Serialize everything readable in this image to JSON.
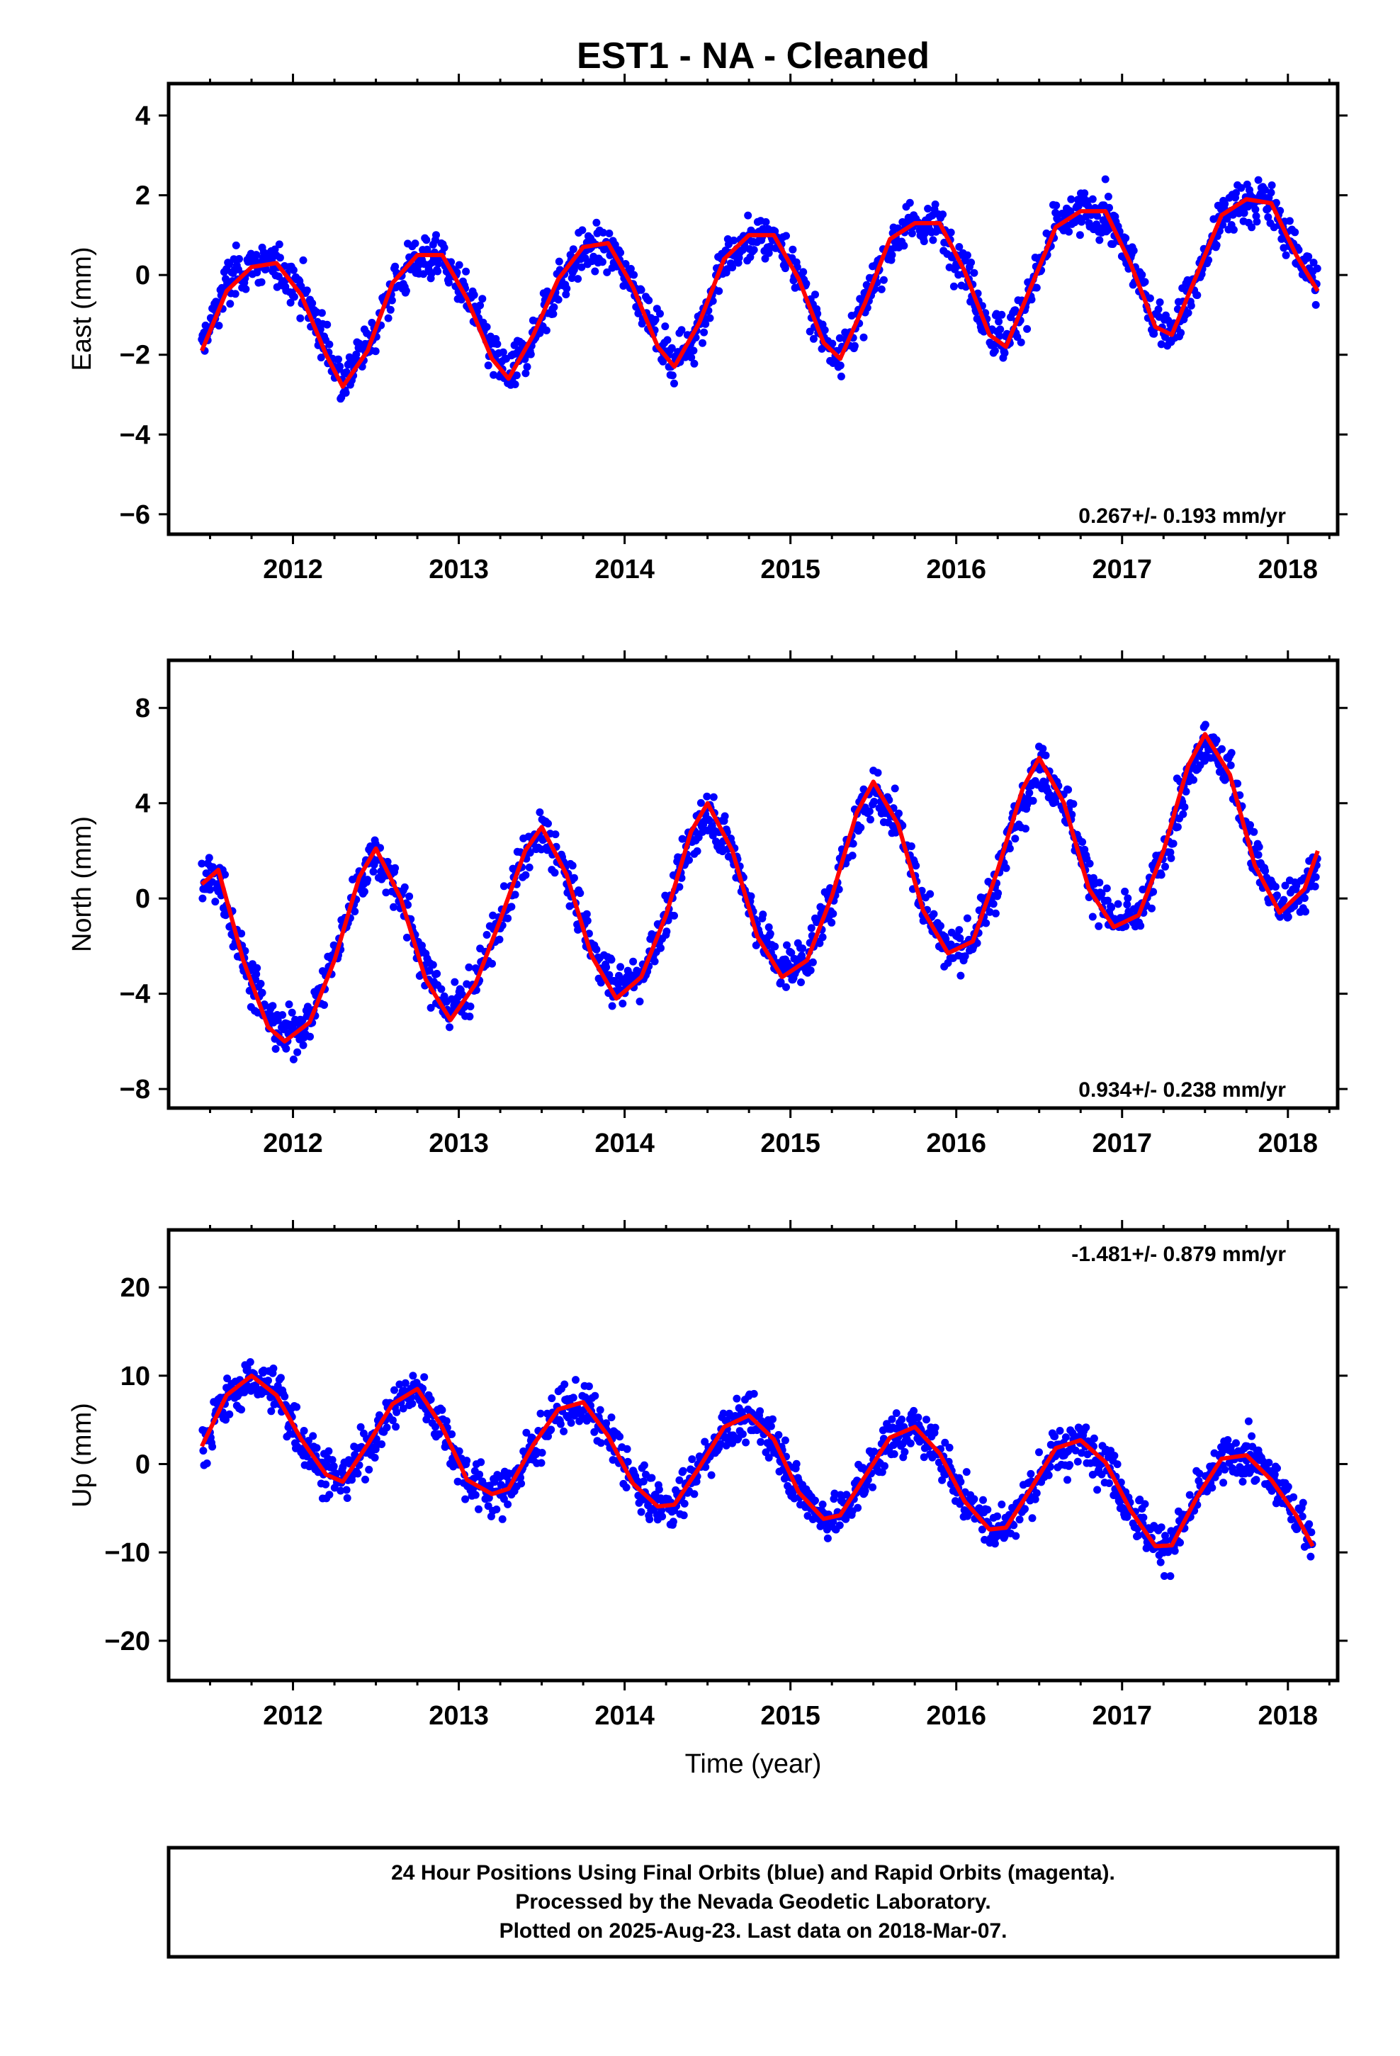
{
  "title": "EST1  - NA - Cleaned",
  "colors": {
    "data": "#0000ff",
    "model": "#ff0000",
    "frame": "#000000"
  },
  "x_axis": {
    "label": "Time (year)",
    "ticks": [
      2012,
      2013,
      2014,
      2015,
      2016,
      2017,
      2018
    ],
    "range": [
      2011.25,
      2018.3
    ]
  },
  "footer": {
    "line1": "24 Hour Positions Using Final Orbits (blue) and Rapid Orbits (magenta).",
    "line2": "Processed by the Nevada Geodetic Laboratory.",
    "line3": "Plotted on 2025-Aug-23. Last data on 2018-Mar-07."
  },
  "chart_data": [
    {
      "type": "scatter",
      "ylabel": "East (mm)",
      "ylim": [
        -6.5,
        4.8
      ],
      "yticks": [
        -6,
        -4,
        -2,
        0,
        2,
        4
      ],
      "rate_text": "0.267+/- 0.193 mm/yr",
      "rate_pos": "bottom-right",
      "series": [
        {
          "style": "points",
          "x": [
            2011.45,
            2011.6,
            2011.75,
            2011.9,
            2012.05,
            2012.2,
            2012.3,
            2012.45,
            2012.6,
            2012.75,
            2012.9,
            2013.05,
            2013.2,
            2013.3,
            2013.45,
            2013.6,
            2013.75,
            2013.9,
            2014.05,
            2014.2,
            2014.3,
            2014.45,
            2014.6,
            2014.75,
            2014.9,
            2015.05,
            2015.2,
            2015.3,
            2015.45,
            2015.6,
            2015.75,
            2015.9,
            2016.05,
            2016.2,
            2016.3,
            2016.45,
            2016.6,
            2016.75,
            2016.9,
            2017.05,
            2017.2,
            2017.3,
            2017.45,
            2017.6,
            2017.75,
            2017.9,
            2018.05,
            2018.18
          ],
          "y": [
            -1.8,
            -0.2,
            0.3,
            0.2,
            -0.3,
            -1.8,
            -2.6,
            -1.8,
            -0.3,
            0.4,
            0.4,
            -0.5,
            -2.0,
            -2.5,
            -1.6,
            -0.2,
            0.6,
            0.7,
            -0.2,
            -1.6,
            -2.2,
            -1.3,
            0.3,
            0.9,
            0.9,
            0.0,
            -1.6,
            -2.0,
            -0.8,
            0.8,
            1.3,
            1.2,
            0.2,
            -1.4,
            -1.7,
            -0.4,
            1.2,
            1.6,
            1.5,
            0.4,
            -1.2,
            -1.4,
            -0.1,
            1.4,
            1.9,
            1.8,
            0.6,
            -0.3
          ]
        },
        {
          "style": "line",
          "x": [
            2011.45,
            2011.6,
            2011.75,
            2011.9,
            2012.05,
            2012.2,
            2012.3,
            2012.45,
            2012.6,
            2012.75,
            2012.9,
            2013.05,
            2013.2,
            2013.3,
            2013.45,
            2013.6,
            2013.75,
            2013.9,
            2014.05,
            2014.2,
            2014.3,
            2014.45,
            2014.6,
            2014.75,
            2014.9,
            2015.05,
            2015.2,
            2015.3,
            2015.45,
            2015.6,
            2015.75,
            2015.9,
            2016.05,
            2016.2,
            2016.3,
            2016.45,
            2016.6,
            2016.75,
            2016.9,
            2017.05,
            2017.2,
            2017.3,
            2017.45,
            2017.6,
            2017.75,
            2017.9,
            2018.05,
            2018.18
          ],
          "y": [
            -1.9,
            -0.4,
            0.2,
            0.3,
            -0.5,
            -2.0,
            -2.8,
            -1.9,
            -0.2,
            0.5,
            0.5,
            -0.6,
            -2.1,
            -2.6,
            -1.5,
            -0.1,
            0.7,
            0.8,
            -0.3,
            -1.8,
            -2.3,
            -1.2,
            0.4,
            1.0,
            1.0,
            -0.1,
            -1.7,
            -2.1,
            -0.7,
            0.9,
            1.3,
            1.3,
            0.1,
            -1.5,
            -1.8,
            -0.3,
            1.2,
            1.6,
            1.6,
            0.3,
            -1.3,
            -1.5,
            0.0,
            1.5,
            1.9,
            1.8,
            0.5,
            -0.4
          ]
        }
      ]
    },
    {
      "type": "scatter",
      "ylabel": "North (mm)",
      "ylim": [
        -8.8,
        10.0
      ],
      "yticks": [
        -8,
        -4,
        0,
        4,
        8
      ],
      "rate_text": "0.934+/- 0.238 mm/yr",
      "rate_pos": "bottom-right",
      "series": [
        {
          "style": "points",
          "x": [
            2011.45,
            2011.55,
            2011.7,
            2011.85,
            2011.95,
            2012.1,
            2012.25,
            2012.4,
            2012.5,
            2012.65,
            2012.8,
            2012.95,
            2013.1,
            2013.25,
            2013.4,
            2013.5,
            2013.65,
            2013.8,
            2013.95,
            2014.1,
            2014.25,
            2014.4,
            2014.5,
            2014.65,
            2014.8,
            2014.95,
            2015.1,
            2015.25,
            2015.4,
            2015.5,
            2015.65,
            2015.8,
            2015.95,
            2016.1,
            2016.25,
            2016.4,
            2016.5,
            2016.65,
            2016.8,
            2016.95,
            2017.1,
            2017.25,
            2017.4,
            2017.5,
            2017.65,
            2017.8,
            2017.95,
            2018.1,
            2018.18
          ],
          "y": [
            0.5,
            1.0,
            -2.5,
            -5.0,
            -5.8,
            -5.0,
            -2.5,
            0.8,
            2.0,
            0.2,
            -3.0,
            -4.8,
            -3.5,
            -1.0,
            1.8,
            2.8,
            1.0,
            -2.0,
            -3.8,
            -3.2,
            -0.8,
            2.5,
            3.8,
            2.0,
            -1.2,
            -3.0,
            -2.5,
            0.0,
            3.2,
            4.6,
            3.2,
            -0.2,
            -2.2,
            -1.8,
            1.0,
            4.2,
            5.6,
            4.2,
            0.8,
            -1.0,
            -0.8,
            1.8,
            5.0,
            6.6,
            5.4,
            1.8,
            -0.4,
            0.2,
            1.6
          ]
        },
        {
          "style": "line",
          "x": [
            2011.45,
            2011.55,
            2011.7,
            2011.85,
            2011.95,
            2012.1,
            2012.25,
            2012.4,
            2012.5,
            2012.65,
            2012.8,
            2012.95,
            2013.1,
            2013.25,
            2013.4,
            2013.5,
            2013.65,
            2013.8,
            2013.95,
            2014.1,
            2014.25,
            2014.4,
            2014.5,
            2014.65,
            2014.8,
            2014.95,
            2015.1,
            2015.25,
            2015.4,
            2015.5,
            2015.65,
            2015.8,
            2015.95,
            2016.1,
            2016.25,
            2016.4,
            2016.5,
            2016.65,
            2016.8,
            2016.95,
            2017.1,
            2017.25,
            2017.4,
            2017.5,
            2017.65,
            2017.8,
            2017.95,
            2018.1,
            2018.18
          ],
          "y": [
            0.6,
            1.2,
            -2.6,
            -5.4,
            -6.0,
            -5.2,
            -2.6,
            0.9,
            2.1,
            0.0,
            -3.4,
            -5.1,
            -3.6,
            -0.9,
            2.0,
            3.0,
            1.0,
            -2.4,
            -4.2,
            -3.3,
            -0.7,
            2.8,
            4.0,
            2.0,
            -1.6,
            -3.3,
            -2.6,
            0.1,
            3.6,
            4.9,
            3.1,
            -0.5,
            -2.3,
            -1.8,
            1.2,
            4.6,
            5.9,
            4.0,
            0.4,
            -1.2,
            -0.7,
            2.0,
            5.6,
            6.9,
            5.2,
            1.4,
            -0.6,
            0.4,
            2.0
          ]
        }
      ]
    },
    {
      "type": "scatter",
      "ylabel": "Up (mm)",
      "ylim": [
        -24.5,
        26.5
      ],
      "yticks": [
        -20,
        -10,
        0,
        10,
        20
      ],
      "rate_text": "-1.481+/- 0.879 mm/yr",
      "rate_pos": "top-right",
      "series": [
        {
          "style": "points",
          "x": [
            2011.45,
            2011.6,
            2011.75,
            2011.9,
            2012.05,
            2012.2,
            2012.3,
            2012.45,
            2012.6,
            2012.75,
            2012.9,
            2013.05,
            2013.2,
            2013.3,
            2013.45,
            2013.6,
            2013.75,
            2013.9,
            2014.05,
            2014.2,
            2014.3,
            2014.45,
            2014.6,
            2014.75,
            2014.9,
            2015.05,
            2015.2,
            2015.3,
            2015.45,
            2015.6,
            2015.75,
            2015.9,
            2016.05,
            2016.2,
            2016.3,
            2016.45,
            2016.6,
            2016.75,
            2016.9,
            2017.05,
            2017.2,
            2017.3,
            2017.45,
            2017.6,
            2017.75,
            2017.9,
            2018.05,
            2018.15
          ],
          "y": [
            2.0,
            7.5,
            9.8,
            8.0,
            3.0,
            -1.0,
            -2.0,
            2.0,
            6.5,
            8.5,
            4.5,
            -1.5,
            -3.2,
            -2.8,
            2.0,
            6.0,
            6.8,
            3.5,
            -2.0,
            -4.5,
            -4.6,
            -0.5,
            4.0,
            5.3,
            3.0,
            -3.0,
            -6.0,
            -5.8,
            -1.5,
            2.8,
            4.0,
            1.5,
            -4.0,
            -7.0,
            -7.2,
            -3.0,
            1.5,
            2.6,
            0.5,
            -5.0,
            -9.0,
            -9.3,
            -4.0,
            0.5,
            1.0,
            -1.5,
            -5.5,
            -9.0
          ]
        },
        {
          "style": "line",
          "x": [
            2011.45,
            2011.6,
            2011.75,
            2011.9,
            2012.05,
            2012.2,
            2012.3,
            2012.45,
            2012.6,
            2012.75,
            2012.9,
            2013.05,
            2013.2,
            2013.3,
            2013.45,
            2013.6,
            2013.75,
            2013.9,
            2014.05,
            2014.2,
            2014.3,
            2014.45,
            2014.6,
            2014.75,
            2014.9,
            2015.05,
            2015.2,
            2015.3,
            2015.45,
            2015.6,
            2015.75,
            2015.9,
            2016.05,
            2016.2,
            2016.3,
            2016.45,
            2016.6,
            2016.75,
            2016.9,
            2017.05,
            2017.2,
            2017.3,
            2017.45,
            2017.6,
            2017.75,
            2017.9,
            2018.05,
            2018.15
          ],
          "y": [
            2.0,
            7.8,
            10.0,
            7.8,
            2.8,
            -1.2,
            -2.0,
            2.2,
            6.8,
            8.5,
            4.2,
            -1.8,
            -3.4,
            -2.8,
            2.2,
            6.2,
            7.0,
            3.2,
            -2.2,
            -4.8,
            -4.6,
            -0.4,
            4.2,
            5.5,
            2.8,
            -3.2,
            -6.2,
            -5.8,
            -1.4,
            3.0,
            4.2,
            1.2,
            -4.2,
            -7.4,
            -7.2,
            -2.8,
            1.8,
            2.7,
            0.2,
            -5.2,
            -9.3,
            -9.2,
            -3.8,
            0.6,
            1.0,
            -1.8,
            -5.8,
            -9.3
          ]
        }
      ]
    }
  ]
}
